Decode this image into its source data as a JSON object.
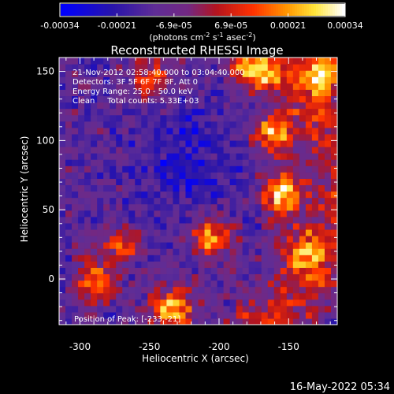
{
  "chart_data": {
    "type": "heatmap",
    "title": "Reconstructed RHESSI Image",
    "xlabel": "Heliocentric X (arcsec)",
    "ylabel": "Heliocentric Y (arcsec)",
    "xlim": [
      -315,
      -115
    ],
    "ylim": [
      -33,
      160
    ],
    "x_ticks": [
      "-300",
      "-250",
      "-200",
      "-150"
    ],
    "x_tick_values": [
      -300,
      -250,
      -200,
      -150
    ],
    "y_ticks": [
      "0",
      "50",
      "100",
      "150"
    ],
    "y_tick_values": [
      0,
      50,
      100,
      150
    ],
    "colorbar": {
      "min": -0.00034,
      "max": 0.00034,
      "tick_labels": [
        "-0.00034",
        "-0.00021",
        "-6.9e-05",
        "6.9e-05",
        "0.00021",
        "0.00034"
      ],
      "unit_label": "(photons cm",
      "unit_sup1": "-2",
      "unit_mid": " s",
      "unit_sup2": "-1",
      "unit_mid2": " asec",
      "unit_sup3": "-2",
      "unit_end": ")",
      "colormap": [
        "#0000ff",
        "#3b1f9a",
        "#5a2a8f",
        "#b11c1c",
        "#ff3300",
        "#ff9900",
        "#ffff66",
        "#ffffff"
      ]
    },
    "annotations": [
      "21-Nov-2012 02:58:40.000 to 03:04:40.000",
      "Detectors: 3F 5F 6F 7F 8F, Att 0",
      "Energy Range: 25.0 - 50.0 keV",
      "Clean     Total counts: 5.33E+03"
    ],
    "peak_label": "Position of Peak: [-233,-21]",
    "intensity_grid_note": "approximate normalized intensity field (0=low, 1=high)",
    "emission_peaks": [
      {
        "x": -233,
        "y": -21,
        "level": 1.0
      },
      {
        "x": -155,
        "y": 62,
        "level": 0.95
      },
      {
        "x": -125,
        "y": 150,
        "level": 0.9
      },
      {
        "x": -160,
        "y": 105,
        "level": 0.8
      },
      {
        "x": -205,
        "y": 30,
        "level": 0.75
      },
      {
        "x": -290,
        "y": 0,
        "level": 0.7
      },
      {
        "x": -270,
        "y": 25,
        "level": 0.55
      },
      {
        "x": -175,
        "y": 150,
        "level": 0.7
      },
      {
        "x": -250,
        "y": 145,
        "level": 0.55
      },
      {
        "x": -140,
        "y": 20,
        "level": 0.6
      }
    ]
  },
  "footer": {
    "date": "16-May-2022 05:34"
  }
}
